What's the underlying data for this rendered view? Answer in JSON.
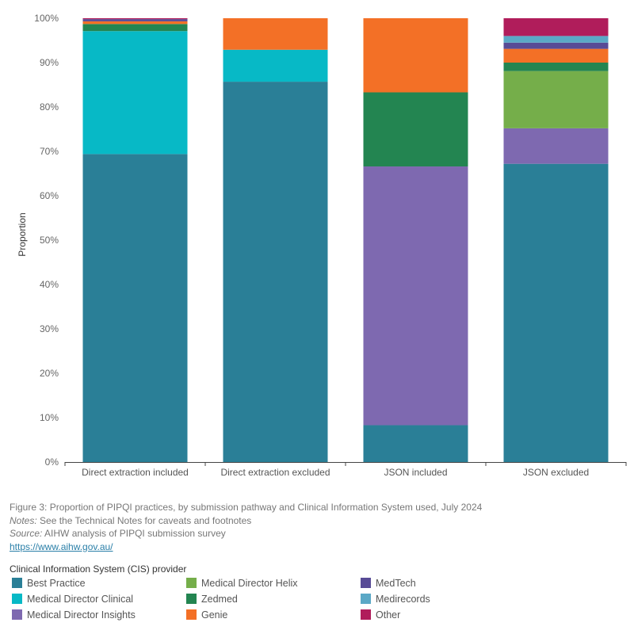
{
  "chart_data": {
    "type": "bar",
    "stacked": true,
    "ylabel": "Proportion",
    "ylim": [
      0,
      100
    ],
    "yticks": [
      "0%",
      "10%",
      "20%",
      "30%",
      "40%",
      "50%",
      "60%",
      "70%",
      "80%",
      "90%",
      "100%"
    ],
    "categories": [
      "Direct extraction included",
      "Direct extraction excluded",
      "JSON included",
      "JSON excluded"
    ],
    "series": [
      {
        "name": "Best Practice",
        "color": "#2a7f97",
        "values": [
          69.4,
          85.7,
          8.3,
          67.2
        ]
      },
      {
        "name": "Medical Director Clinical",
        "color": "#07b9c6",
        "values": [
          27.7,
          7.2,
          0,
          0
        ]
      },
      {
        "name": "Medical Director Insights",
        "color": "#7e69b0",
        "values": [
          0,
          0,
          58.3,
          8.0
        ]
      },
      {
        "name": "Medical Director Helix",
        "color": "#75ae4a",
        "values": [
          0,
          0,
          0,
          12.9
        ]
      },
      {
        "name": "Zedmed",
        "color": "#238551",
        "values": [
          1.6,
          0,
          16.7,
          1.9
        ]
      },
      {
        "name": "Genie",
        "color": "#f37026",
        "values": [
          0.6,
          7.1,
          16.7,
          3.1
        ]
      },
      {
        "name": "MedTech",
        "color": "#584b96",
        "values": [
          0.5,
          0,
          0,
          1.4
        ]
      },
      {
        "name": "Medirecords",
        "color": "#5ba8c6",
        "values": [
          0,
          0,
          0,
          1.5
        ]
      },
      {
        "name": "Other",
        "color": "#b01d5b",
        "values": [
          0.2,
          0,
          0,
          4.0
        ]
      }
    ]
  },
  "caption": {
    "figure": "Figure 3: Proportion of PIPQI practices, by submission pathway and Clinical Information System used, July 2024",
    "notes_label": "Notes:",
    "notes_text": " See the Technical Notes for caveats and footnotes",
    "source_label": "Source:",
    "source_text": " AIHW analysis of PIPQI submission survey",
    "link": "https://www.aihw.gov.au/"
  },
  "legend": {
    "title": "Clinical Information System (CIS) provider",
    "items": [
      {
        "label": "Best Practice",
        "color": "#2a7f97"
      },
      {
        "label": "Medical Director Helix",
        "color": "#75ae4a"
      },
      {
        "label": "MedTech",
        "color": "#584b96"
      },
      {
        "label": "Medical Director Clinical",
        "color": "#07b9c6"
      },
      {
        "label": "Zedmed",
        "color": "#238551"
      },
      {
        "label": "Medirecords",
        "color": "#5ba8c6"
      },
      {
        "label": "Medical Director Insights",
        "color": "#7e69b0"
      },
      {
        "label": "Genie",
        "color": "#f37026"
      },
      {
        "label": "Other",
        "color": "#b01d5b"
      }
    ]
  }
}
